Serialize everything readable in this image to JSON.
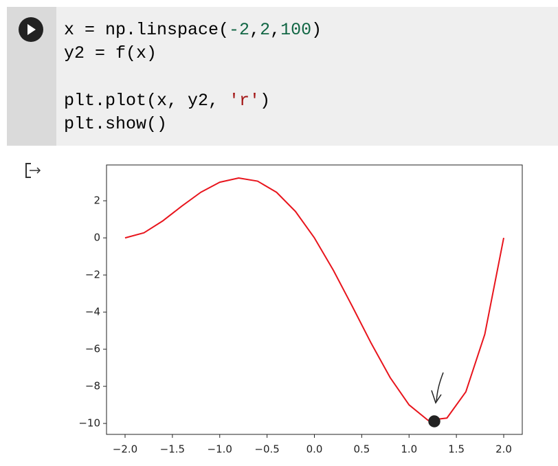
{
  "code": {
    "lines": [
      [
        "x = np.linspace(",
        "-2",
        ",",
        "2",
        ",",
        "100",
        ")"
      ],
      [
        "y2 = f(x)"
      ],
      [
        "plt.plot(x, y2, ",
        "'r'",
        ")"
      ],
      [
        "plt.show()"
      ]
    ]
  },
  "chart_data": {
    "type": "line",
    "x": [
      -2.0,
      -1.8,
      -1.6,
      -1.4,
      -1.2,
      -1.0,
      -0.8,
      -0.6,
      -0.4,
      -0.2,
      0.0,
      0.2,
      0.4,
      0.6,
      0.8,
      1.0,
      1.2,
      1.4,
      1.6,
      1.8,
      2.0
    ],
    "series": [
      {
        "color": "#e8141c",
        "values": [
          0,
          0.2736,
          0.9216,
          1.7136,
          2.4576,
          3,
          3.2256,
          3.0576,
          2.4576,
          1.4256,
          0,
          -1.7424,
          -3.6864,
          -5.6784,
          -7.5264,
          -9,
          -9.8304,
          -9.7104,
          -8.2944,
          -5.1984,
          0
        ]
      }
    ],
    "xlim": [
      -2.196,
      2.196
    ],
    "ylim": [
      -10.59,
      3.93
    ],
    "xticks": [
      {
        "value": -2.0,
        "label": "−2.0"
      },
      {
        "value": -1.5,
        "label": "−1.5"
      },
      {
        "value": -1.0,
        "label": "−1.0"
      },
      {
        "value": -0.5,
        "label": "−0.5"
      },
      {
        "value": 0.0,
        "label": "0.0"
      },
      {
        "value": 0.5,
        "label": "0.5"
      },
      {
        "value": 1.0,
        "label": "1.0"
      },
      {
        "value": 1.5,
        "label": "1.5"
      },
      {
        "value": 2.0,
        "label": "2.0"
      }
    ],
    "yticks": [
      2,
      0,
      {
        "value": -2,
        "label": "−2"
      },
      {
        "value": -4,
        "label": "−4"
      },
      {
        "value": -6,
        "label": "−6"
      },
      {
        "value": -8,
        "label": "−8"
      },
      {
        "value": -10,
        "label": "−10"
      }
    ],
    "grid": false
  }
}
